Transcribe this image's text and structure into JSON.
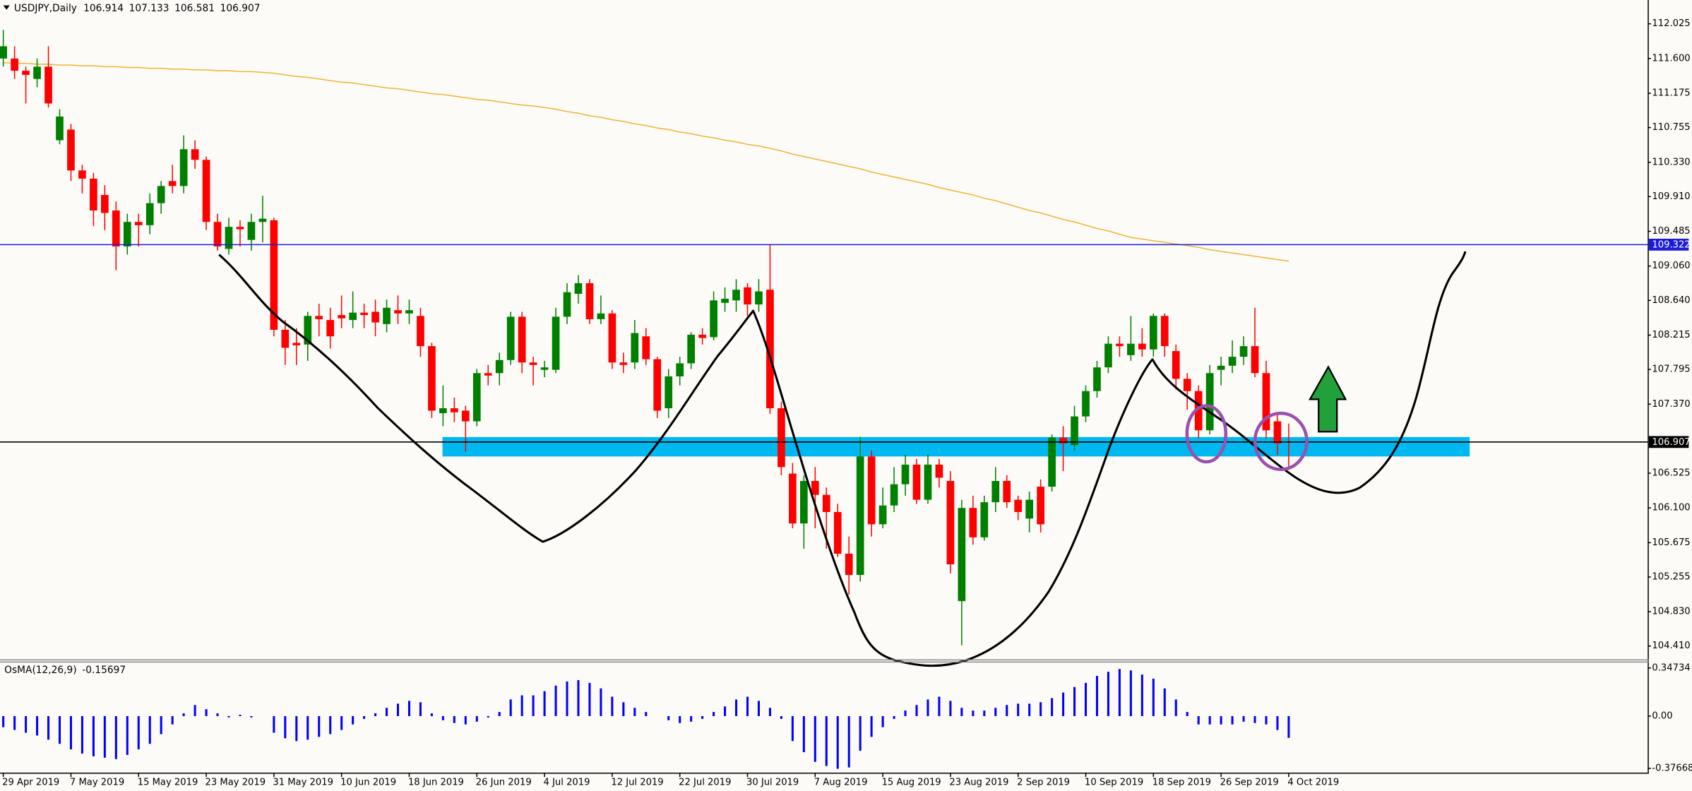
{
  "chart_data": [
    {
      "type": "candlestick",
      "title": "USDJPY,Daily",
      "categories": [
        "29 Apr 2019",
        null,
        null,
        null,
        null,
        null,
        "7 May 2019",
        null,
        null,
        null,
        null,
        null,
        "15 May 2019",
        null,
        null,
        null,
        null,
        null,
        "23 May 2019",
        null,
        null,
        null,
        null,
        null,
        "31 May 2019",
        null,
        null,
        null,
        null,
        null,
        "10 Jun 2019",
        null,
        null,
        null,
        null,
        null,
        "18 Jun 2019",
        null,
        null,
        null,
        null,
        null,
        "26 Jun 2019",
        null,
        null,
        null,
        null,
        null,
        "4 Jul 2019",
        null,
        null,
        null,
        null,
        null,
        "12 Jul 2019",
        null,
        null,
        null,
        null,
        null,
        "22 Jul 2019",
        null,
        null,
        null,
        null,
        null,
        "30 Jul 2019",
        null,
        null,
        null,
        null,
        null,
        "7 Aug 2019",
        null,
        null,
        null,
        null,
        null,
        "15 Aug 2019",
        null,
        null,
        null,
        null,
        null,
        "23 Aug 2019",
        null,
        null,
        null,
        null,
        null,
        "2 Sep 2019",
        null,
        null,
        null,
        null,
        null,
        "10 Sep 2019",
        null,
        null,
        null,
        null,
        null,
        "18 Sep 2019",
        null,
        null,
        null,
        null,
        null,
        "26 Sep 2019",
        null,
        null,
        null,
        null,
        null,
        "4 Oct 2019"
      ],
      "open": [
        111.6,
        111.6,
        111.45,
        111.35,
        111.5,
        110.6,
        110.73,
        110.23,
        110.13,
        109.93,
        109.74,
        109.3,
        109.6,
        109.56,
        109.83,
        110.1,
        110.04,
        110.49,
        110.36,
        109.6,
        109.27,
        109.54,
        109.38,
        109.6,
        109.62,
        108.28,
        108.12,
        108.1,
        108.45,
        108.4,
        108.46,
        108.4,
        108.49,
        108.5,
        108.35,
        108.52,
        108.48,
        108.45,
        108.08,
        107.26,
        107.32,
        107.29,
        107.16,
        107.75,
        107.75,
        107.91,
        108.44,
        107.88,
        107.79,
        107.79,
        108.44,
        108.72,
        108.85,
        108.41,
        108.48,
        107.88,
        107.88,
        108.2,
        107.92,
        107.32,
        107.71,
        107.87,
        108.22,
        108.19,
        108.61,
        108.64,
        108.8,
        108.59,
        108.77,
        107.32,
        106.52,
        105.91,
        106.43,
        106.26,
        106.05,
        105.54,
        105.28,
        106.73,
        105.9,
        106.13,
        106.39,
        106.63,
        106.2,
        106.63,
        106.43,
        104.96,
        106.1,
        105.74,
        106.17,
        106.43,
        106.2,
        105.97,
        106.36,
        106.36,
        106.96,
        106.87,
        107.22,
        107.53,
        107.82,
        108.11,
        107.97,
        108.11,
        108.04,
        108.45,
        108.02,
        107.68,
        107.53,
        107.05,
        107.79,
        107.84,
        107.95,
        108.08,
        107.75,
        107.16,
        106.914
      ],
      "high": [
        111.95,
        111.75,
        111.5,
        111.6,
        111.75,
        110.98,
        110.8,
        110.3,
        110.2,
        110.05,
        109.85,
        109.7,
        109.7,
        109.95,
        110.1,
        110.3,
        110.66,
        110.6,
        110.4,
        109.7,
        109.65,
        109.62,
        109.7,
        109.92,
        109.65,
        108.4,
        108.3,
        108.5,
        108.6,
        108.55,
        108.7,
        108.75,
        108.6,
        108.65,
        108.65,
        108.7,
        108.65,
        108.55,
        108.12,
        107.6,
        107.45,
        107.35,
        107.8,
        107.85,
        108.0,
        108.5,
        108.5,
        107.95,
        107.9,
        108.55,
        108.85,
        108.95,
        108.9,
        108.7,
        108.52,
        108.0,
        108.4,
        108.3,
        107.95,
        107.8,
        107.95,
        108.25,
        108.3,
        108.75,
        108.8,
        108.9,
        108.85,
        108.9,
        109.33,
        107.4,
        106.65,
        106.5,
        106.6,
        106.35,
        106.15,
        105.75,
        106.97,
        106.8,
        106.35,
        106.6,
        106.75,
        106.7,
        106.75,
        106.7,
        106.55,
        106.2,
        106.25,
        106.25,
        106.6,
        106.5,
        106.25,
        106.3,
        106.45,
        107.0,
        107.1,
        107.35,
        107.6,
        107.9,
        108.2,
        108.2,
        108.45,
        108.3,
        108.48,
        108.48,
        108.1,
        107.75,
        107.6,
        107.85,
        107.95,
        108.15,
        108.2,
        108.55,
        107.9,
        107.25,
        107.133
      ],
      "low": [
        111.5,
        111.35,
        111.05,
        111.25,
        111.0,
        110.55,
        110.1,
        109.95,
        109.55,
        109.5,
        109.01,
        109.2,
        109.3,
        109.45,
        109.7,
        109.95,
        109.95,
        110.25,
        109.5,
        109.25,
        109.2,
        109.3,
        109.25,
        109.35,
        108.2,
        107.85,
        107.85,
        107.9,
        108.2,
        108.05,
        108.3,
        108.3,
        108.3,
        108.2,
        108.25,
        108.35,
        108.35,
        107.95,
        107.2,
        107.1,
        107.15,
        106.79,
        107.1,
        107.6,
        107.6,
        107.85,
        107.75,
        107.6,
        107.7,
        107.75,
        108.35,
        108.6,
        108.35,
        108.35,
        107.8,
        107.75,
        107.8,
        107.85,
        107.2,
        107.2,
        107.6,
        107.8,
        108.1,
        108.15,
        108.5,
        108.5,
        108.45,
        108.5,
        107.25,
        106.5,
        105.85,
        105.6,
        105.85,
        105.6,
        105.5,
        105.04,
        105.2,
        105.75,
        105.85,
        106.05,
        106.25,
        106.15,
        106.15,
        106.35,
        105.3,
        104.42,
        105.65,
        105.7,
        106.05,
        106.1,
        105.95,
        105.8,
        105.8,
        106.3,
        106.55,
        106.8,
        107.15,
        107.45,
        107.75,
        107.95,
        107.9,
        107.95,
        107.95,
        107.95,
        107.55,
        107.3,
        106.95,
        107.0,
        107.6,
        107.75,
        107.85,
        107.7,
        106.95,
        106.75,
        106.581
      ],
      "close": [
        111.75,
        111.45,
        111.4,
        111.5,
        111.05,
        110.89,
        110.23,
        110.13,
        109.74,
        109.71,
        109.3,
        109.6,
        109.56,
        109.83,
        110.04,
        110.04,
        110.49,
        110.36,
        109.6,
        109.3,
        109.54,
        109.51,
        109.6,
        109.64,
        108.28,
        108.06,
        108.09,
        108.45,
        108.41,
        108.2,
        108.42,
        108.49,
        108.46,
        108.37,
        108.55,
        108.48,
        108.52,
        108.08,
        107.29,
        107.32,
        107.27,
        107.16,
        107.75,
        107.72,
        107.91,
        108.44,
        107.88,
        107.85,
        107.82,
        108.44,
        108.74,
        108.85,
        108.41,
        108.48,
        107.88,
        107.85,
        108.24,
        107.92,
        107.29,
        107.71,
        107.87,
        108.22,
        108.18,
        108.64,
        108.66,
        108.77,
        108.59,
        108.75,
        107.32,
        106.6,
        105.91,
        106.43,
        106.26,
        106.05,
        105.54,
        105.28,
        106.73,
        105.9,
        106.13,
        106.39,
        106.63,
        106.2,
        106.63,
        106.47,
        105.41,
        106.1,
        105.74,
        106.17,
        106.43,
        106.17,
        106.05,
        106.2,
        105.9,
        106.96,
        106.89,
        107.22,
        107.53,
        107.82,
        108.11,
        108.08,
        108.11,
        108.04,
        108.45,
        108.08,
        107.68,
        107.53,
        107.05,
        107.75,
        107.84,
        107.95,
        108.08,
        107.75,
        107.05,
        106.89,
        106.907
      ],
      "up_color": "#008000",
      "down_color": "#ff0000",
      "lines": [
        {
          "color": "#f2b233",
          "values": [
            111.55,
            111.54,
            111.54,
            111.53,
            111.53,
            111.52,
            111.52,
            111.51,
            111.51,
            111.5,
            111.5,
            111.49,
            111.49,
            111.48,
            111.48,
            111.47,
            111.47,
            111.46,
            111.46,
            111.45,
            111.45,
            111.44,
            111.44,
            111.43,
            111.42,
            111.4,
            111.38,
            111.37,
            111.35,
            111.33,
            111.31,
            111.3,
            111.28,
            111.26,
            111.24,
            111.23,
            111.21,
            111.19,
            111.17,
            111.16,
            111.14,
            111.12,
            111.1,
            111.09,
            111.07,
            111.05,
            111.03,
            111.02,
            111.0,
            110.98,
            110.95,
            110.93,
            110.9,
            110.88,
            110.85,
            110.83,
            110.8,
            110.78,
            110.75,
            110.73,
            110.7,
            110.68,
            110.65,
            110.63,
            110.6,
            110.58,
            110.55,
            110.53,
            110.5,
            110.47,
            110.43,
            110.4,
            110.37,
            110.34,
            110.31,
            110.28,
            110.25,
            110.21,
            110.18,
            110.15,
            110.12,
            110.09,
            110.06,
            110.02,
            109.99,
            109.96,
            109.93,
            109.89,
            109.86,
            109.82,
            109.78,
            109.74,
            109.71,
            109.67,
            109.63,
            109.6,
            109.56,
            109.52,
            109.49,
            109.45,
            109.41,
            109.39,
            109.37,
            109.35,
            109.33,
            109.31,
            109.29,
            109.26,
            109.24,
            109.22,
            109.2,
            109.18,
            109.16,
            109.14,
            109.12
          ]
        }
      ],
      "price_lines": [
        {
          "value": 109.322,
          "color": "#1c1cd8"
        },
        {
          "value": 106.907,
          "color": "#000000"
        }
      ],
      "ylim": [
        104.247,
        112.316
      ],
      "yticks": [
        112.025,
        {
          "value": 111.6,
          "label": "111.600"
        },
        111.175,
        110.755,
        {
          "value": 110.33,
          "label": "110.330"
        },
        {
          "value": 109.91,
          "label": "109.910"
        },
        109.485,
        {
          "value": 109.06,
          "label": "109.060"
        },
        {
          "value": 108.64,
          "label": "108.640"
        },
        108.215,
        107.795,
        {
          "value": 107.37,
          "label": "107.370"
        },
        106.525,
        {
          "value": 106.1,
          "label": "106.100"
        },
        105.675,
        105.255,
        {
          "value": 104.83,
          "label": "104.830"
        },
        {
          "value": 104.41,
          "label": "104.410"
        }
      ]
    },
    {
      "type": "bar",
      "title": "OsMA(12,26,9)",
      "color": "#0000ff",
      "values": [
        -0.08,
        -0.1,
        -0.12,
        -0.14,
        -0.17,
        -0.2,
        -0.24,
        -0.27,
        -0.29,
        -0.3,
        -0.31,
        -0.28,
        -0.24,
        -0.2,
        -0.13,
        -0.06,
        0.02,
        0.08,
        0.05,
        0.02,
        -0.01,
        0.01,
        -0.01,
        0.0,
        -0.12,
        -0.16,
        -0.18,
        -0.17,
        -0.15,
        -0.13,
        -0.1,
        -0.06,
        -0.02,
        0.02,
        0.06,
        0.09,
        0.11,
        0.1,
        0.02,
        -0.03,
        -0.05,
        -0.06,
        -0.04,
        -0.01,
        0.03,
        0.12,
        0.15,
        0.15,
        0.18,
        0.22,
        0.25,
        0.26,
        0.24,
        0.2,
        0.14,
        0.1,
        0.06,
        0.03,
        0.0,
        -0.03,
        -0.05,
        -0.04,
        -0.02,
        0.03,
        0.07,
        0.12,
        0.14,
        0.11,
        0.06,
        -0.02,
        -0.18,
        -0.26,
        -0.33,
        -0.36,
        -0.38,
        -0.37,
        -0.25,
        -0.15,
        -0.08,
        -0.02,
        0.04,
        0.08,
        0.12,
        0.14,
        0.11,
        0.06,
        0.04,
        0.04,
        0.06,
        0.08,
        0.09,
        0.09,
        0.1,
        0.13,
        0.17,
        0.21,
        0.24,
        0.29,
        0.32,
        0.34,
        0.33,
        0.3,
        0.27,
        0.2,
        0.12,
        0.03,
        -0.06,
        -0.06,
        -0.06,
        -0.06,
        -0.04,
        -0.05,
        -0.06,
        -0.1,
        -0.15697
      ],
      "ylim": [
        -0.408,
        0.394
      ],
      "yticks": [
        0.34734,
        {
          "value": 0,
          "label": "0.00"
        },
        -0.37668
      ]
    }
  ]
}
